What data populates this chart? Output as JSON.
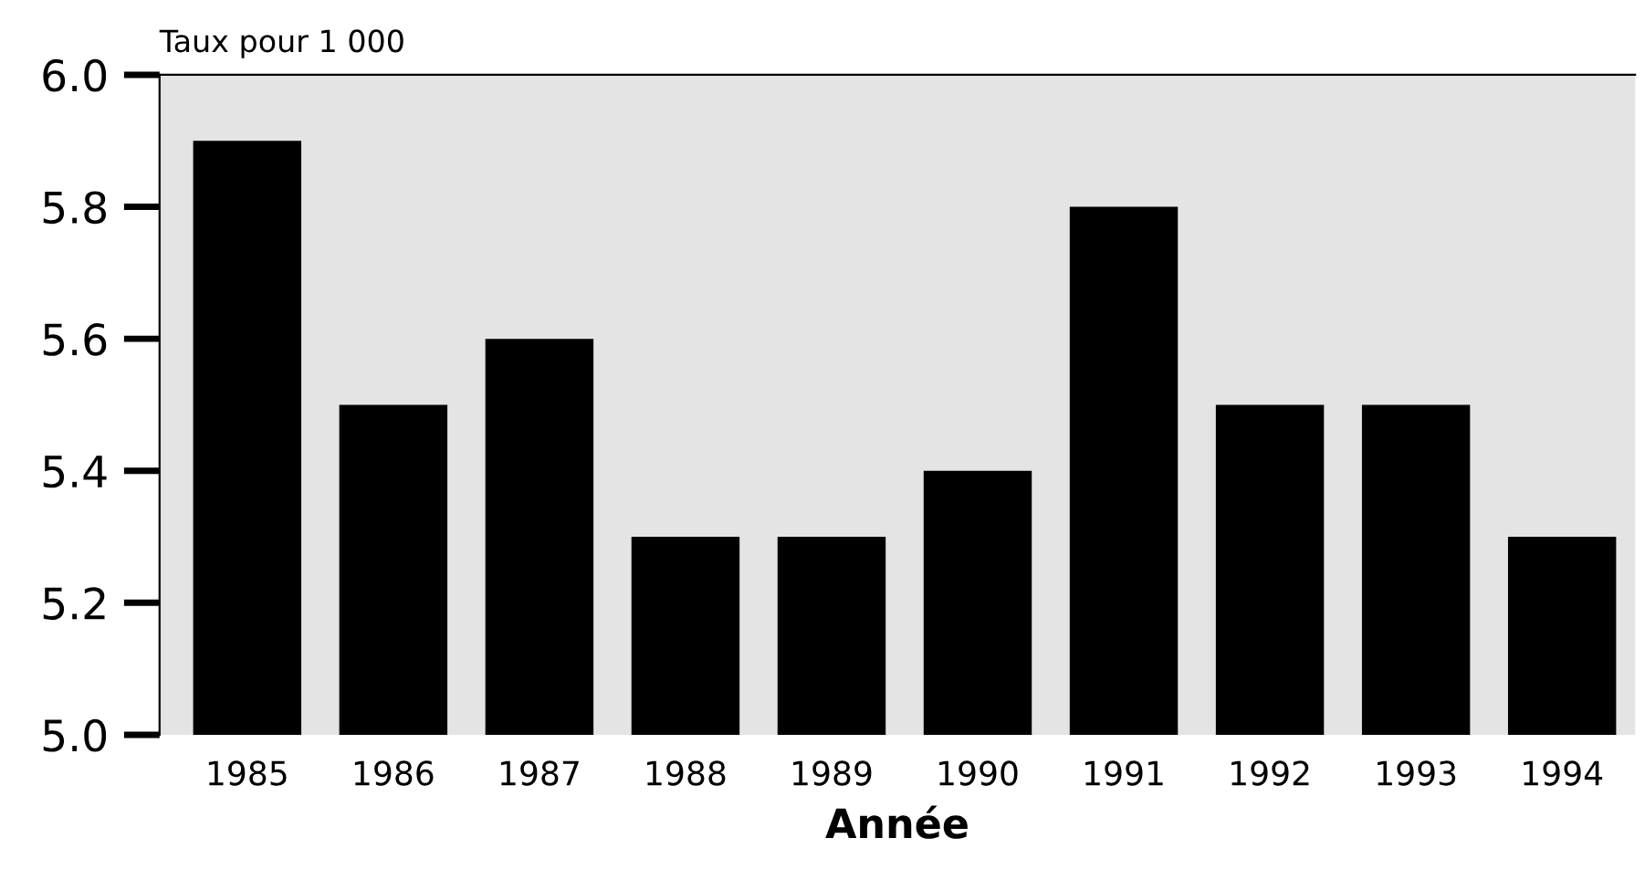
{
  "chart_data": {
    "type": "bar",
    "ylabel": "Taux pour 1 000",
    "xlabel": "Année",
    "categories": [
      "1985",
      "1986",
      "1987",
      "1988",
      "1989",
      "1990",
      "1991",
      "1992",
      "1993",
      "1994"
    ],
    "values": [
      5.9,
      5.5,
      5.6,
      5.3,
      5.3,
      5.4,
      5.8,
      5.5,
      5.5,
      5.3
    ],
    "color": "#000000",
    "ylim": [
      5.0,
      6.0
    ],
    "yticks": [
      {
        "value": 5.0,
        "label": "5.0"
      },
      {
        "value": 5.2,
        "label": "5.2"
      },
      {
        "value": 5.4,
        "label": "5.4"
      },
      {
        "value": 5.6,
        "label": "5.6"
      },
      {
        "value": 5.8,
        "label": "5.8"
      },
      {
        "value": 6.0,
        "label": "6.0"
      }
    ],
    "grid": false
  }
}
